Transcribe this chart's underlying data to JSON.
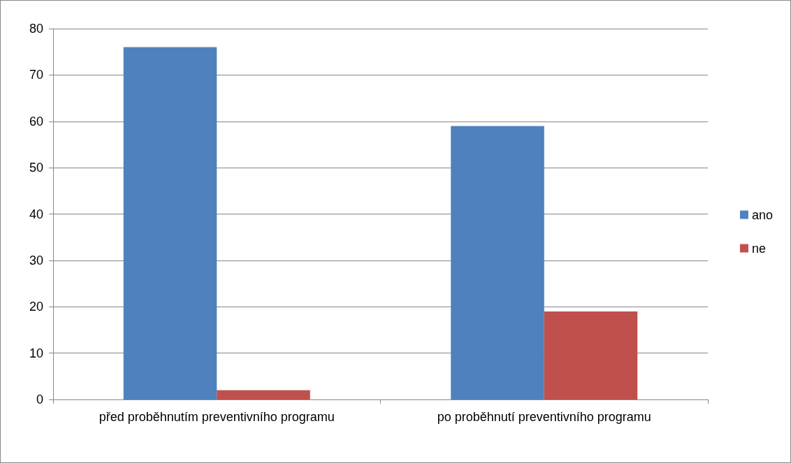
{
  "chart_data": {
    "type": "bar",
    "categories": [
      "před proběhnutím preventivního programu",
      "po proběhnutí preventivního programu"
    ],
    "series": [
      {
        "name": "ano",
        "color": "#4f81bd",
        "values": [
          76,
          59
        ]
      },
      {
        "name": "ne",
        "color": "#c0504d",
        "values": [
          2,
          19
        ]
      }
    ],
    "ylim": [
      0,
      80
    ],
    "yticks": [
      0,
      10,
      20,
      30,
      40,
      50,
      60,
      70,
      80
    ],
    "grid": "y",
    "legend": "right"
  }
}
